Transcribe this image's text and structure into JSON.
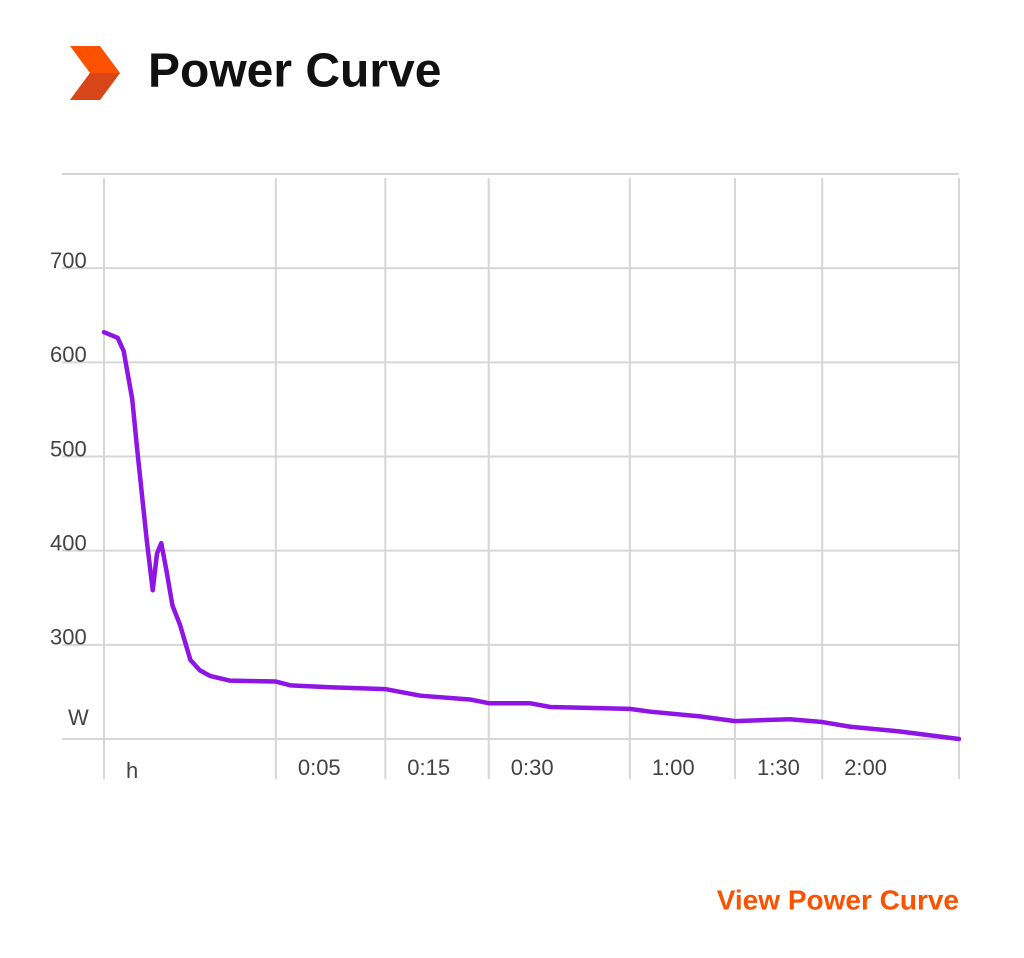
{
  "header": {
    "title": "Power Curve"
  },
  "chart_data": {
    "type": "line",
    "y_unit": "W",
    "x_unit": "h",
    "x": [
      0,
      1.6,
      2.3,
      3.3,
      3.9,
      5.0,
      5.7,
      6.2,
      6.7,
      7.3,
      8.0,
      8.9,
      10.1,
      11.2,
      12.4,
      14.7,
      20.1,
      21.8,
      26.4,
      32.9,
      37.0,
      42.8,
      45.0,
      49.8,
      52.2,
      61.5,
      63.9,
      69.7,
      73.8,
      80.2,
      84.0,
      87.3,
      93.1,
      100
    ],
    "series": [
      {
        "color": "#8f14e6",
        "values": [
          632,
          626,
          612,
          561,
          506,
          411,
          358,
          397,
          408,
          379,
          342,
          321,
          284,
          273,
          267,
          262,
          261,
          257,
          255,
          253,
          246,
          242,
          238,
          238,
          234,
          232,
          229,
          224,
          219,
          221,
          218,
          213,
          208,
          200
        ]
      }
    ],
    "xlim": [
      0,
      100
    ],
    "xticks": [
      {
        "value": 20.1,
        "label": "0:05"
      },
      {
        "value": 32.9,
        "label": "0:15"
      },
      {
        "value": 45.0,
        "label": "0:30"
      },
      {
        "value": 61.5,
        "label": "1:00"
      },
      {
        "value": 73.8,
        "label": "1:30"
      },
      {
        "value": 84.0,
        "label": "2:00"
      }
    ],
    "ylim": [
      200,
      800
    ],
    "yticks": [
      300,
      400,
      500,
      600,
      700
    ],
    "grid": true
  },
  "link": {
    "label": "View Power Curve"
  }
}
